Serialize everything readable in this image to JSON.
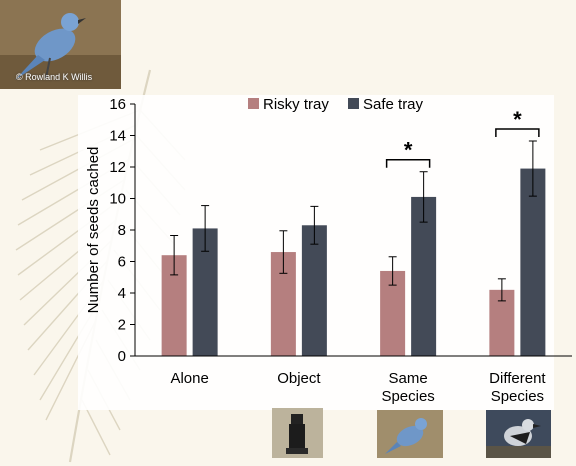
{
  "credit": "© Rowland K Willis",
  "colors": {
    "risky": "#b57f7f",
    "safe": "#434a57",
    "axis": "#000000",
    "background": "#faf6ec"
  },
  "photos": {
    "bird_icon": "pinyon-jay-photo",
    "object_icon": "object-photo",
    "same_species_icon": "pinyon-jay-photo",
    "different_species_icon": "nutcracker-photo"
  },
  "chart_data": {
    "type": "bar",
    "title": "",
    "xlabel": "",
    "ylabel": "Number of seeds cached",
    "ylim": [
      0,
      16
    ],
    "yticks": [
      "0",
      "2",
      "4",
      "6",
      "8",
      "10",
      "12",
      "14",
      "16"
    ],
    "grid": false,
    "legend_position": "top",
    "categories": [
      [
        "Alone"
      ],
      [
        "Object"
      ],
      [
        "Same",
        "Species"
      ],
      [
        "Different",
        "Species"
      ]
    ],
    "series": [
      {
        "name": "Risky tray",
        "values": [
          6.4,
          6.6,
          5.4,
          4.2
        ],
        "errors": [
          1.25,
          1.35,
          0.9,
          0.7
        ]
      },
      {
        "name": "Safe tray",
        "values": [
          8.1,
          8.3,
          10.1,
          11.9
        ],
        "errors": [
          1.45,
          1.2,
          1.6,
          1.75
        ]
      }
    ],
    "annotations": [
      {
        "category_index": 2,
        "text": "*"
      },
      {
        "category_index": 3,
        "text": "*"
      }
    ]
  }
}
